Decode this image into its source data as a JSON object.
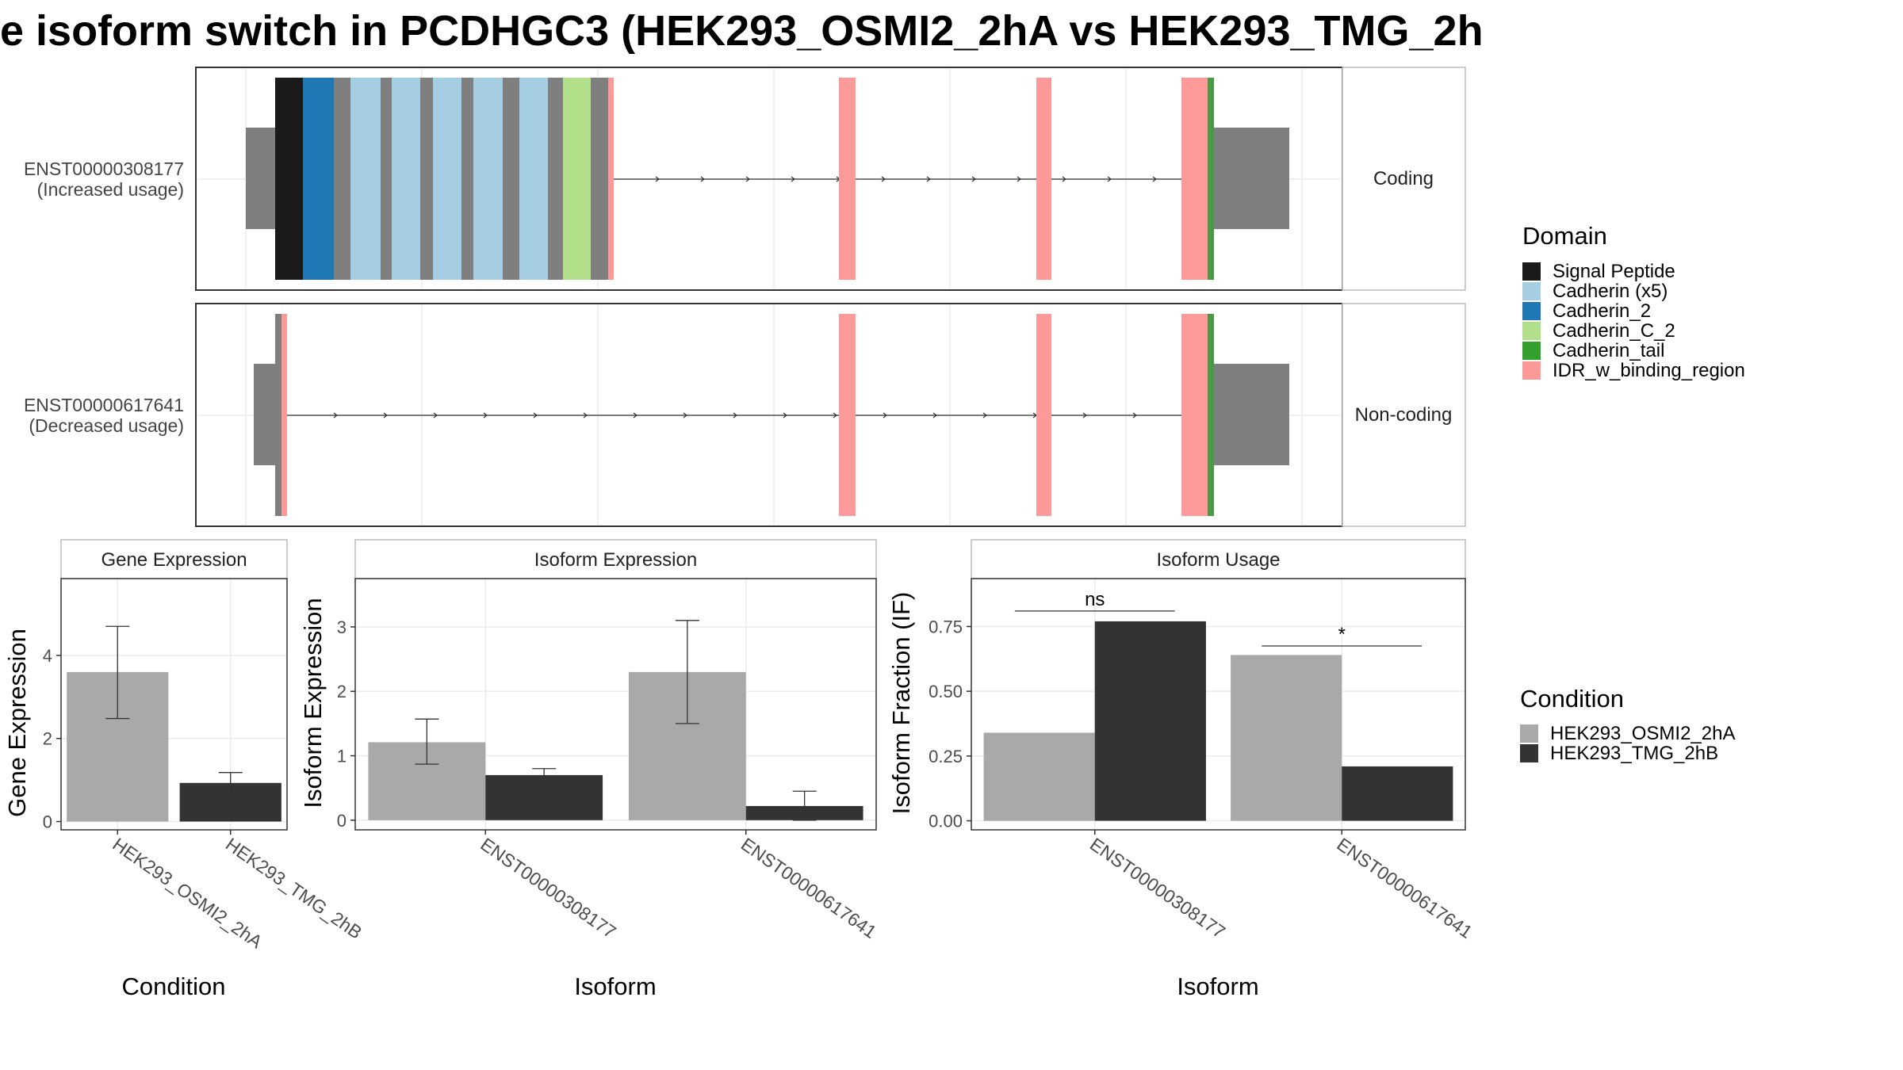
{
  "title": "e isoform switch in PCDHGC3 (HEK293_OSMI2_2hA vs HEK293_TMG_2h",
  "colors": {
    "signal_peptide": "#1a1a1a",
    "cadherin_x5": "#a6cee3",
    "cadherin_2": "#1f78b4",
    "cadherin_c_2": "#b2df8a",
    "cadherin_tail": "#33a02c",
    "idr": "#fb9a99",
    "exon": "#7f7f7f",
    "cond_a": "#a9a9a9",
    "cond_b": "#333333"
  },
  "domain_legend": {
    "title": "Domain",
    "items": [
      {
        "label": "Signal Peptide",
        "color": "#1a1a1a"
      },
      {
        "label": "Cadherin (x5)",
        "color": "#a6cee3"
      },
      {
        "label": "Cadherin_2",
        "color": "#1f78b4"
      },
      {
        "label": "Cadherin_C_2",
        "color": "#b2df8a"
      },
      {
        "label": "Cadherin_tail",
        "color": "#33a02c"
      },
      {
        "label": "IDR_w_binding_region",
        "color": "#fb9a99"
      }
    ]
  },
  "condition_legend": {
    "title": "Condition",
    "items": [
      {
        "label": "HEK293_OSMI2_2hA",
        "color": "#a9a9a9"
      },
      {
        "label": "HEK293_TMG_2hB",
        "color": "#333333"
      }
    ]
  },
  "transcripts": [
    {
      "id": "ENST00000308177",
      "usage": "(Increased usage)",
      "strip": "Coding"
    },
    {
      "id": "ENST00000617641",
      "usage": "(Decreased usage)",
      "strip": "Non-coding"
    }
  ],
  "chart_data": [
    {
      "type": "bar",
      "strip": "Gene Expression",
      "xlabel": "Condition",
      "ylabel": "Gene Expression",
      "categories": [
        "HEK293_OSMI2_2hA",
        "HEK293_TMG_2hB"
      ],
      "values": [
        3.6,
        0.93
      ],
      "err_low": [
        2.48,
        0.7
      ],
      "err_high": [
        4.7,
        1.18
      ],
      "ylim": [
        -0.2,
        5.85
      ],
      "yticks": [
        "0",
        "2",
        "4"
      ],
      "grid": true
    },
    {
      "type": "bar",
      "strip": "Isoform Expression",
      "xlabel": "Isoform",
      "ylabel": "Isoform Expression",
      "categories": [
        "ENST00000308177",
        "ENST00000617641"
      ],
      "series": [
        {
          "name": "HEK293_OSMI2_2hA",
          "values": [
            1.21,
            2.3
          ],
          "err_low": [
            0.87,
            1.5
          ],
          "err_high": [
            1.57,
            3.1
          ]
        },
        {
          "name": "HEK293_TMG_2hB",
          "values": [
            0.7,
            0.22
          ],
          "err_low": [
            0.6,
            0.0
          ],
          "err_high": [
            0.8,
            0.45
          ]
        }
      ],
      "ylim": [
        -0.15,
        3.75
      ],
      "yticks": [
        "0",
        "1",
        "2",
        "3"
      ],
      "grid": true
    },
    {
      "type": "bar",
      "strip": "Isoform Usage",
      "xlabel": "Isoform",
      "ylabel": "Isoform Fraction (IF)",
      "categories": [
        "ENST00000308177",
        "ENST00000617641"
      ],
      "series": [
        {
          "name": "HEK293_OSMI2_2hA",
          "values": [
            0.34,
            0.64
          ]
        },
        {
          "name": "HEK293_TMG_2hB",
          "values": [
            0.77,
            0.21
          ]
        }
      ],
      "significance": [
        "ns",
        "*"
      ],
      "sig_y": [
        0.81,
        0.675
      ],
      "ylim": [
        -0.035,
        0.935
      ],
      "yticks": [
        "0.00",
        "0.25",
        "0.50",
        "0.75"
      ],
      "grid": true
    }
  ]
}
